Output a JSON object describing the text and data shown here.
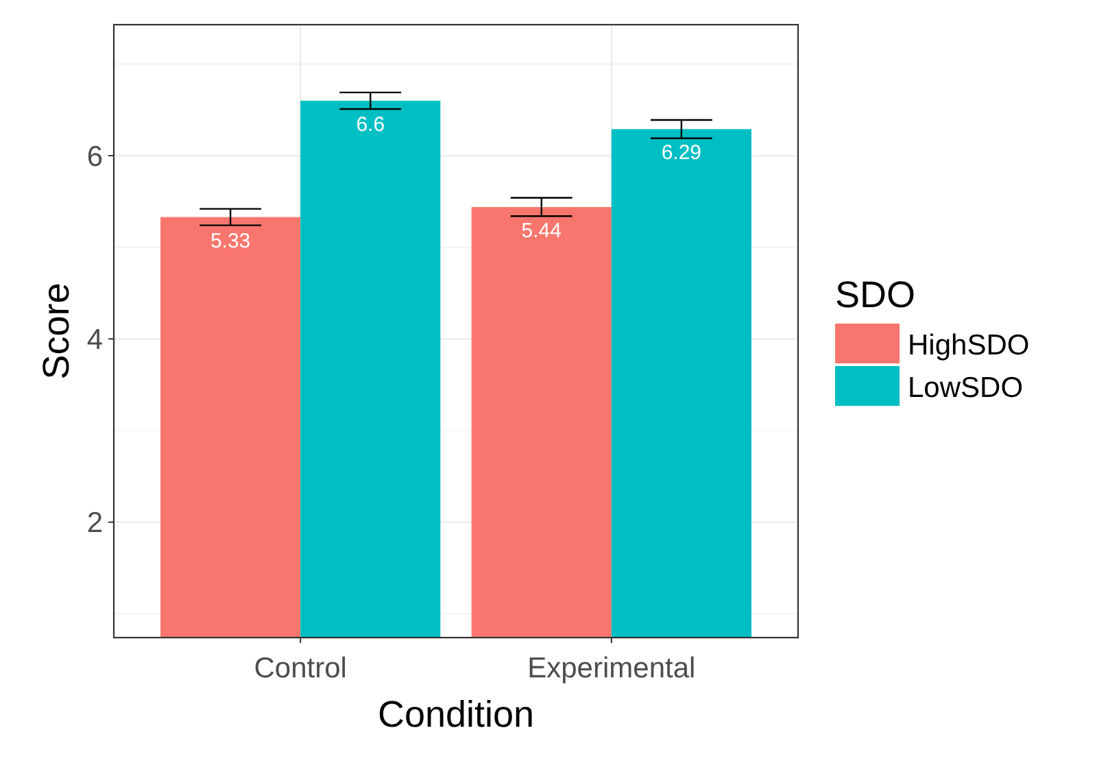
{
  "chart_data": {
    "type": "bar",
    "xlabel": "Condition",
    "ylabel": "Score",
    "legend_title": "SDO",
    "categories": [
      "Control",
      "Experimental"
    ],
    "series": [
      {
        "name": "HighSDO",
        "color": "#f8766d",
        "values": [
          5.33,
          5.44
        ],
        "errors": [
          0.09,
          0.1
        ],
        "value_labels": [
          "5.33",
          "5.44"
        ]
      },
      {
        "name": "LowSDO",
        "color": "#00bfc4",
        "values": [
          6.6,
          6.29
        ],
        "errors": [
          0.09,
          0.1
        ],
        "value_labels": [
          "6.6",
          "6.29"
        ]
      }
    ],
    "ylim": [
      0.74,
      7.43
    ],
    "yticks": [
      2,
      4,
      6
    ],
    "grid": true,
    "legend": "right"
  }
}
